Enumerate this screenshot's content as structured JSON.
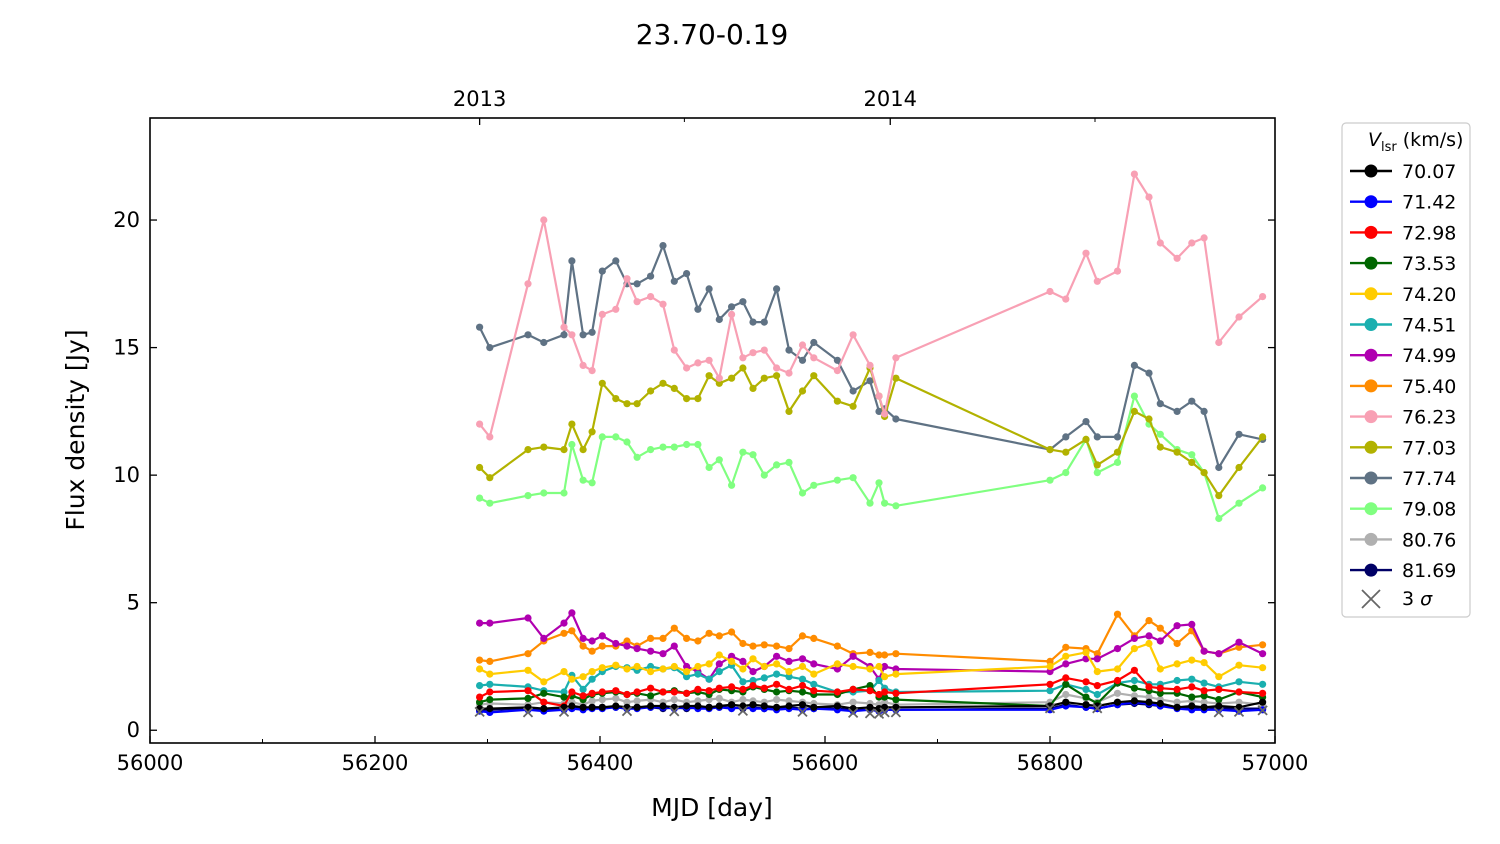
{
  "chart_data": {
    "type": "line",
    "title": "23.70-0.19",
    "xlabel": "MJD [day]",
    "ylabel": "Flux density [Jy]",
    "xlim": [
      56000,
      57000
    ],
    "ylim": [
      -0.5,
      24
    ],
    "x_ticks": [
      56000,
      56200,
      56400,
      56600,
      56800,
      57000
    ],
    "y_ticks": [
      0,
      5,
      10,
      15,
      20
    ],
    "top_axis": {
      "ticks": [
        {
          "label": "2013",
          "mjd": 56293
        },
        {
          "label": "2014",
          "mjd": 56658
        }
      ],
      "minor_ticks_mjd": [
        56475,
        56840
      ]
    },
    "legend": {
      "placement": "outside-right",
      "title_symbol": "V",
      "title_subscript": "lsr",
      "title_unit": " (km/s)",
      "sigma_label_prefix": "3 ",
      "sigma_label_symbol": "σ",
      "sigma_color": "#666666"
    },
    "x": [
      56293,
      56302,
      56336,
      56350,
      56368,
      56375,
      56385,
      56393,
      56402,
      56414,
      56424,
      56433,
      56445,
      56456,
      56466,
      56477,
      56487,
      56497,
      56506,
      56517,
      56527,
      56536,
      56546,
      56557,
      56568,
      56580,
      56590,
      56611,
      56625,
      56640,
      56648,
      56653,
      56663,
      56800,
      56814,
      56832,
      56842,
      56860,
      56875,
      56888,
      56898,
      56913,
      56926,
      56937,
      56950,
      56968,
      56989
    ],
    "series": [
      {
        "name": "70.07",
        "color": "#000000",
        "values": [
          0.85,
          0.85,
          0.9,
          0.85,
          0.9,
          0.95,
          0.9,
          0.9,
          0.9,
          0.95,
          0.9,
          0.9,
          0.95,
          0.95,
          0.9,
          0.95,
          0.95,
          0.9,
          0.95,
          1.0,
          0.95,
          1.0,
          0.95,
          0.9,
          0.95,
          1.0,
          0.9,
          0.95,
          0.85,
          0.9,
          0.85,
          0.9,
          0.9,
          0.95,
          1.1,
          1.0,
          0.95,
          1.1,
          1.15,
          1.1,
          1.05,
          0.9,
          0.95,
          0.9,
          0.95,
          0.9,
          1.1
        ]
      },
      {
        "name": "71.42",
        "color": "#0000ff",
        "values": [
          0.75,
          0.7,
          0.8,
          0.75,
          0.8,
          0.85,
          0.8,
          0.85,
          0.85,
          0.9,
          0.85,
          0.85,
          0.9,
          0.9,
          0.85,
          0.9,
          0.85,
          0.85,
          0.9,
          0.85,
          0.9,
          0.85,
          0.85,
          0.8,
          0.85,
          0.8,
          0.85,
          0.8,
          0.75,
          0.8,
          0.75,
          0.8,
          0.8,
          0.8,
          0.95,
          0.9,
          0.85,
          1.0,
          1.1,
          1.05,
          0.95,
          0.85,
          0.8,
          0.8,
          0.8,
          0.75,
          0.8
        ]
      },
      {
        "name": "72.98",
        "color": "#ff0000",
        "values": [
          1.3,
          1.5,
          1.55,
          1.1,
          0.95,
          1.5,
          1.35,
          1.45,
          1.5,
          1.55,
          1.4,
          1.5,
          1.65,
          1.5,
          1.5,
          1.45,
          1.6,
          1.55,
          1.65,
          1.7,
          1.6,
          1.75,
          1.65,
          1.8,
          1.6,
          1.75,
          1.55,
          1.5,
          1.6,
          1.55,
          1.4,
          1.5,
          1.45,
          1.8,
          2.05,
          1.9,
          1.75,
          1.95,
          2.35,
          1.7,
          1.65,
          1.6,
          1.7,
          1.55,
          1.6,
          1.5,
          1.45
        ]
      },
      {
        "name": "73.53",
        "color": "#006600",
        "values": [
          1.1,
          1.2,
          1.25,
          1.45,
          1.3,
          1.35,
          1.2,
          1.4,
          1.45,
          1.5,
          1.4,
          1.45,
          1.35,
          1.5,
          1.55,
          1.45,
          1.5,
          1.4,
          1.6,
          1.55,
          1.5,
          1.7,
          1.6,
          1.5,
          1.55,
          1.5,
          1.4,
          1.4,
          1.6,
          1.75,
          1.3,
          1.3,
          1.2,
          0.95,
          1.8,
          1.3,
          1.05,
          1.85,
          1.65,
          1.55,
          1.45,
          1.45,
          1.3,
          1.35,
          1.2,
          1.5,
          1.3
        ]
      },
      {
        "name": "74.20",
        "color": "#ffcc00",
        "values": [
          2.4,
          2.2,
          2.35,
          1.9,
          2.3,
          2.0,
          2.1,
          2.3,
          2.45,
          2.55,
          2.4,
          2.5,
          2.3,
          2.4,
          2.5,
          2.3,
          2.5,
          2.6,
          2.95,
          2.7,
          2.4,
          2.8,
          2.5,
          2.6,
          2.3,
          2.5,
          2.2,
          2.6,
          2.5,
          2.4,
          2.5,
          2.1,
          2.2,
          2.5,
          2.9,
          3.05,
          2.3,
          2.4,
          3.2,
          3.4,
          2.4,
          2.6,
          2.75,
          2.65,
          2.1,
          2.55,
          2.45
        ]
      },
      {
        "name": "74.51",
        "color": "#1aafaf",
        "values": [
          1.75,
          1.8,
          1.7,
          1.55,
          1.5,
          2.15,
          1.6,
          2.0,
          2.3,
          2.5,
          2.45,
          2.35,
          2.5,
          2.4,
          2.45,
          2.1,
          2.2,
          2.0,
          2.3,
          2.55,
          1.9,
          1.95,
          2.05,
          2.2,
          2.1,
          2.0,
          1.8,
          1.5,
          1.5,
          1.55,
          1.95,
          1.65,
          1.5,
          1.55,
          1.8,
          1.6,
          1.4,
          1.85,
          1.95,
          1.8,
          1.8,
          1.95,
          2.0,
          1.85,
          1.7,
          1.9,
          1.8
        ]
      },
      {
        "name": "74.99",
        "color": "#b000b0",
        "values": [
          4.2,
          4.2,
          4.4,
          3.6,
          4.2,
          4.6,
          3.6,
          3.5,
          3.7,
          3.4,
          3.3,
          3.2,
          3.1,
          3.0,
          3.3,
          2.5,
          2.3,
          2.0,
          2.6,
          2.9,
          2.7,
          2.3,
          2.5,
          2.9,
          2.7,
          2.8,
          2.6,
          2.4,
          2.9,
          2.5,
          2.0,
          2.5,
          2.4,
          2.3,
          2.6,
          2.8,
          2.8,
          3.2,
          3.6,
          3.7,
          3.5,
          4.1,
          4.15,
          3.1,
          3.0,
          3.45,
          3.0
        ]
      },
      {
        "name": "75.40",
        "color": "#ff8c00",
        "values": [
          2.75,
          2.7,
          3.0,
          3.5,
          3.8,
          3.9,
          3.3,
          3.1,
          3.3,
          3.3,
          3.5,
          3.3,
          3.6,
          3.6,
          4.0,
          3.6,
          3.5,
          3.8,
          3.7,
          3.85,
          3.4,
          3.3,
          3.35,
          3.3,
          3.2,
          3.7,
          3.6,
          3.3,
          3.0,
          3.05,
          2.95,
          2.95,
          3.0,
          2.7,
          3.25,
          3.2,
          3.0,
          4.55,
          3.7,
          4.3,
          4.0,
          3.4,
          3.9,
          3.1,
          3.0,
          3.25,
          3.35
        ]
      },
      {
        "name": "76.23",
        "color": "#f8a0b4",
        "values": [
          12.0,
          11.5,
          17.5,
          20.0,
          15.8,
          15.5,
          14.3,
          14.1,
          16.3,
          16.5,
          17.7,
          16.8,
          17.0,
          16.7,
          14.9,
          14.2,
          14.4,
          14.5,
          13.8,
          16.3,
          14.6,
          14.8,
          14.9,
          14.2,
          14.0,
          15.1,
          14.6,
          14.1,
          15.5,
          14.3,
          13.1,
          12.4,
          14.6,
          17.2,
          16.9,
          18.7,
          17.6,
          18.0,
          21.8,
          20.9,
          19.1,
          18.5,
          19.1,
          19.3,
          15.2,
          16.2,
          17.0
        ]
      },
      {
        "name": "77.03",
        "color": "#b2b200",
        "values": [
          10.3,
          9.9,
          11.0,
          11.1,
          11.0,
          12.0,
          11.0,
          11.7,
          13.6,
          13.0,
          12.8,
          12.8,
          13.3,
          13.6,
          13.4,
          13.0,
          13.0,
          13.9,
          13.6,
          13.8,
          14.2,
          13.4,
          13.8,
          13.9,
          12.5,
          13.3,
          13.9,
          12.9,
          12.7,
          14.2,
          13.1,
          12.3,
          13.8,
          11.0,
          10.9,
          11.4,
          10.4,
          10.9,
          12.5,
          12.2,
          11.1,
          10.9,
          10.5,
          10.1,
          9.2,
          10.3,
          11.5
        ]
      },
      {
        "name": "77.74",
        "color": "#5f7284",
        "values": [
          15.8,
          15.0,
          15.5,
          15.2,
          15.5,
          18.4,
          15.5,
          15.6,
          18.0,
          18.4,
          17.5,
          17.5,
          17.8,
          19.0,
          17.6,
          17.9,
          16.5,
          17.3,
          16.1,
          16.6,
          16.8,
          16.0,
          16.0,
          17.3,
          14.9,
          14.5,
          15.2,
          14.5,
          13.3,
          13.7,
          12.5,
          12.6,
          12.2,
          11.0,
          11.5,
          12.1,
          11.5,
          11.5,
          14.3,
          14.0,
          12.8,
          12.5,
          12.9,
          12.5,
          10.3,
          11.6,
          11.4
        ]
      },
      {
        "name": "79.08",
        "color": "#80ff80",
        "values": [
          9.1,
          8.9,
          9.2,
          9.3,
          9.3,
          11.2,
          9.8,
          9.7,
          11.5,
          11.5,
          11.3,
          10.7,
          11.0,
          11.1,
          11.1,
          11.2,
          11.2,
          10.3,
          10.6,
          9.6,
          10.9,
          10.8,
          10.0,
          10.4,
          10.5,
          9.3,
          9.6,
          9.8,
          9.9,
          8.9,
          9.7,
          8.9,
          8.8,
          9.8,
          10.1,
          11.4,
          10.1,
          10.5,
          13.1,
          12.0,
          11.6,
          11.0,
          10.8,
          10.1,
          8.3,
          8.9,
          9.5
        ]
      },
      {
        "name": "80.76",
        "color": "#b0b0b0",
        "values": [
          1.0,
          1.05,
          1.0,
          1.1,
          1.05,
          1.1,
          1.0,
          1.15,
          1.2,
          1.25,
          1.1,
          1.15,
          1.2,
          1.1,
          1.2,
          1.1,
          1.15,
          1.2,
          1.25,
          1.1,
          1.2,
          1.15,
          1.1,
          1.2,
          1.15,
          1.1,
          1.05,
          1.0,
          1.1,
          1.05,
          1.0,
          1.1,
          1.0,
          1.1,
          1.4,
          1.25,
          1.1,
          1.45,
          1.35,
          1.3,
          1.2,
          1.1,
          1.15,
          1.1,
          1.05,
          1.1,
          1.0
        ]
      },
      {
        "name": "81.69",
        "color": "#000066",
        "values": [
          0.8,
          0.8,
          0.85,
          0.8,
          0.85,
          0.9,
          0.85,
          0.9,
          0.9,
          0.9,
          0.85,
          0.9,
          0.9,
          0.85,
          0.9,
          0.85,
          0.9,
          0.9,
          0.9,
          0.9,
          0.85,
          0.9,
          0.85,
          0.85,
          0.9,
          0.85,
          0.85,
          0.85,
          0.8,
          0.8,
          0.75,
          0.8,
          0.8,
          0.85,
          1.0,
          0.9,
          0.85,
          1.0,
          1.05,
          1.0,
          0.95,
          0.9,
          0.85,
          0.9,
          0.85,
          0.85,
          0.85
        ]
      }
    ],
    "sigma_points": [
      {
        "x": 56293,
        "y": 0.72
      },
      {
        "x": 56336,
        "y": 0.7
      },
      {
        "x": 56368,
        "y": 0.72
      },
      {
        "x": 56424,
        "y": 0.75
      },
      {
        "x": 56466,
        "y": 0.74
      },
      {
        "x": 56527,
        "y": 0.76
      },
      {
        "x": 56580,
        "y": 0.72
      },
      {
        "x": 56625,
        "y": 0.68
      },
      {
        "x": 56640,
        "y": 0.66
      },
      {
        "x": 56648,
        "y": 0.64
      },
      {
        "x": 56653,
        "y": 0.7
      },
      {
        "x": 56663,
        "y": 0.7
      },
      {
        "x": 56800,
        "y": 0.86
      },
      {
        "x": 56842,
        "y": 0.86
      },
      {
        "x": 56950,
        "y": 0.7
      },
      {
        "x": 56968,
        "y": 0.72
      },
      {
        "x": 56989,
        "y": 0.78
      }
    ]
  }
}
